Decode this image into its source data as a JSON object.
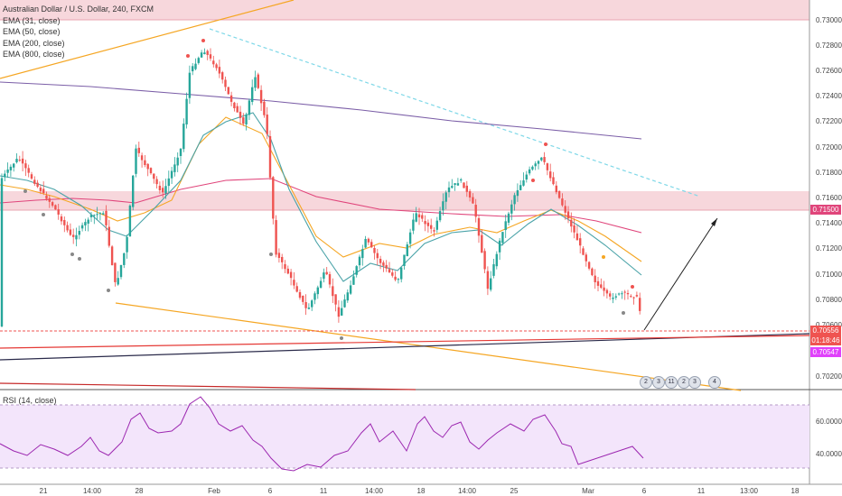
{
  "legend": {
    "title": "Australian Dollar / U.S. Dollar, 240, FXCM",
    "ema31": "EMA (31, close)",
    "ema50": "EMA (50, close)",
    "ema200": "EMA (200, close)",
    "ema800": "EMA (800, close)"
  },
  "rsi_label": "RSI (14, close)",
  "price_axis": [
    "0.73000",
    "0.72800",
    "0.72600",
    "0.72400",
    "0.72200",
    "0.72000",
    "0.71800",
    "0.71600",
    "0.71400",
    "0.71200",
    "0.71000",
    "0.70800",
    "0.70600",
    "0.70200"
  ],
  "price_tags": {
    "level_top": "0.71500",
    "current": "0.70556",
    "countdown": "01:18:46",
    "level_low": "0.70547"
  },
  "rsi_axis": [
    "60.0000",
    "40.0000"
  ],
  "time_axis": [
    "21",
    "14:00",
    "28",
    "Feb",
    "6",
    "11",
    "14:00",
    "18",
    "14:00",
    "25",
    "Mar",
    "6",
    "11",
    "13:00",
    "18"
  ],
  "events": [
    "2",
    "3",
    "11",
    "2",
    "3",
    "4"
  ],
  "colors": {
    "up": "#26a69a",
    "down": "#ef5350",
    "ema31": "#4aa3a8",
    "ema50": "#f5a623",
    "ema200": "#e0457b",
    "ema800": "#7b5ea7",
    "zone": "#f7d7dc",
    "rsi_bg": "#f3e5fb",
    "rsi_line": "#9c27b0"
  }
}
